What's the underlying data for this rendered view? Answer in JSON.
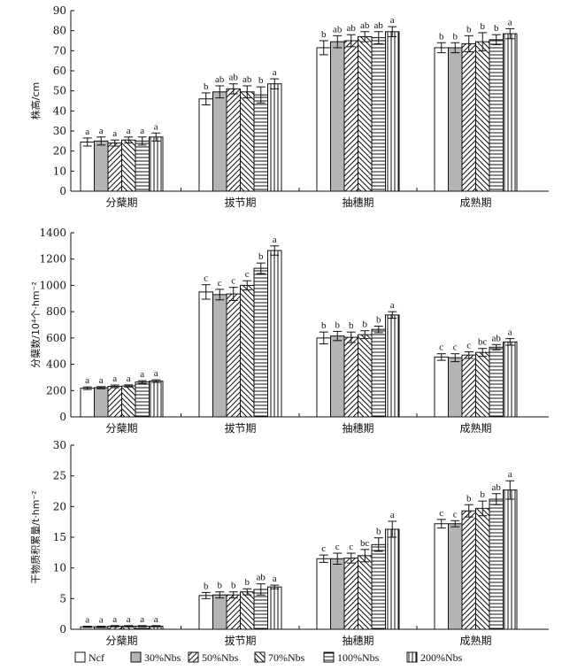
{
  "chart_data": [
    {
      "type": "bar",
      "ylabel": "株高/cm",
      "ylim": [
        0,
        90
      ],
      "yticks": [
        0,
        10,
        20,
        30,
        40,
        50,
        60,
        70,
        80,
        90
      ],
      "categories": [
        "分蘖期",
        "拔节期",
        "抽穗期",
        "成熟期"
      ],
      "series": [
        {
          "name": "Ncf",
          "values": [
            24.5,
            46.0,
            71.5,
            71.5
          ],
          "errors": [
            2.0,
            3.0,
            3.5,
            2.5
          ],
          "letters": [
            "a",
            "b",
            "b",
            "b"
          ]
        },
        {
          "name": "30%Nbs",
          "values": [
            25.0,
            49.5,
            74.5,
            71.5
          ],
          "errors": [
            2.0,
            3.0,
            3.0,
            2.5
          ],
          "letters": [
            "a",
            "ab",
            "ab",
            "b"
          ]
        },
        {
          "name": "50%Nbs",
          "values": [
            24.0,
            51.0,
            75.0,
            73.5
          ],
          "errors": [
            1.5,
            2.5,
            3.0,
            4.0
          ],
          "letters": [
            "a",
            "ab",
            "ab",
            "b"
          ]
        },
        {
          "name": "70%Nbs",
          "values": [
            25.5,
            49.5,
            77.0,
            74.5
          ],
          "errors": [
            1.5,
            3.0,
            2.5,
            4.5
          ],
          "letters": [
            "a",
            "ab",
            "ab",
            "b"
          ]
        },
        {
          "name": "100%Nbs",
          "values": [
            25.0,
            48.0,
            76.5,
            75.5
          ],
          "errors": [
            2.0,
            4.0,
            3.0,
            2.5
          ],
          "letters": [
            "a",
            "b",
            "ab",
            "b"
          ]
        },
        {
          "name": "200%Nbs",
          "values": [
            27.0,
            53.5,
            79.5,
            78.5
          ],
          "errors": [
            2.0,
            2.5,
            2.5,
            2.5
          ],
          "letters": [
            "a",
            "a",
            "a",
            "a"
          ]
        }
      ]
    },
    {
      "type": "bar",
      "ylabel": "分蘖数/10⁴个·hm⁻²",
      "ylim": [
        0,
        1400
      ],
      "yticks": [
        0,
        200,
        400,
        600,
        800,
        1000,
        1200,
        1400
      ],
      "categories": [
        "分蘖期",
        "拔节期",
        "抽穗期",
        "成熟期"
      ],
      "series": [
        {
          "name": "Ncf",
          "values": [
            218,
            950,
            600,
            455
          ],
          "errors": [
            10,
            55,
            45,
            25
          ],
          "letters": [
            "a",
            "c",
            "b",
            "c"
          ]
        },
        {
          "name": "30%Nbs",
          "values": [
            222,
            930,
            615,
            450
          ],
          "errors": [
            8,
            40,
            35,
            30
          ],
          "letters": [
            "a",
            "c",
            "b",
            "c"
          ]
        },
        {
          "name": "50%Nbs",
          "values": [
            232,
            935,
            605,
            470
          ],
          "errors": [
            10,
            50,
            40,
            25
          ],
          "letters": [
            "a",
            "c",
            "b",
            "c"
          ]
        },
        {
          "name": "70%Nbs",
          "values": [
            235,
            1000,
            625,
            490
          ],
          "errors": [
            8,
            35,
            30,
            30
          ],
          "letters": [
            "a",
            "c",
            "b",
            "bc"
          ]
        },
        {
          "name": "100%Nbs",
          "values": [
            265,
            1130,
            665,
            530
          ],
          "errors": [
            10,
            40,
            25,
            20
          ],
          "letters": [
            "a",
            "b",
            "b",
            "ab"
          ]
        },
        {
          "name": "200%Nbs",
          "values": [
            272,
            1265,
            775,
            570
          ],
          "errors": [
            10,
            35,
            25,
            25
          ],
          "letters": [
            "a",
            "a",
            "a",
            "a"
          ]
        }
      ]
    },
    {
      "type": "bar",
      "ylabel": "干物质积累量/t·hm⁻²",
      "ylim": [
        0,
        30
      ],
      "yticks": [
        0,
        5,
        10,
        15,
        20,
        25,
        30
      ],
      "categories": [
        "分蘖期",
        "拔节期",
        "抽穗期",
        "成熟期"
      ],
      "series": [
        {
          "name": "Ncf",
          "values": [
            0.4,
            5.5,
            11.5,
            17.2
          ],
          "errors": [
            0.1,
            0.5,
            0.6,
            0.7
          ],
          "letters": [
            "a",
            "b",
            "c",
            "c"
          ]
        },
        {
          "name": "30%Nbs",
          "values": [
            0.4,
            5.6,
            11.5,
            17.2
          ],
          "errors": [
            0.1,
            0.5,
            0.9,
            0.5
          ],
          "letters": [
            "a",
            "b",
            "c",
            "c"
          ]
        },
        {
          "name": "50%Nbs",
          "values": [
            0.5,
            5.6,
            11.6,
            19.3
          ],
          "errors": [
            0.1,
            0.5,
            0.8,
            1.0
          ],
          "letters": [
            "a",
            "b",
            "c",
            "b"
          ]
        },
        {
          "name": "70%Nbs",
          "values": [
            0.5,
            6.1,
            12.0,
            19.7
          ],
          "errors": [
            0.1,
            0.5,
            1.0,
            1.2
          ],
          "letters": [
            "a",
            "b",
            "bc",
            "b"
          ]
        },
        {
          "name": "100%Nbs",
          "values": [
            0.5,
            6.5,
            13.8,
            21.2
          ],
          "errors": [
            0.1,
            0.9,
            1.1,
            0.9
          ],
          "letters": [
            "a",
            "ab",
            "b",
            "ab"
          ]
        },
        {
          "name": "200%Nbs",
          "values": [
            0.5,
            6.9,
            16.3,
            22.7
          ],
          "errors": [
            0.1,
            0.3,
            1.3,
            1.5
          ],
          "letters": [
            "a",
            "a",
            "a",
            "a"
          ]
        }
      ]
    }
  ],
  "legend": {
    "placement": "bottom",
    "items": [
      {
        "label": "Ncf",
        "pattern": "white"
      },
      {
        "label": "30%Nbs",
        "pattern": "gray"
      },
      {
        "label": "50%Nbs",
        "pattern": "diagonal-forward"
      },
      {
        "label": "70%Nbs",
        "pattern": "diagonal-back"
      },
      {
        "label": "100%Nbs",
        "pattern": "horizontal"
      },
      {
        "label": "200%Nbs",
        "pattern": "vertical"
      }
    ]
  },
  "colors": {
    "gray_fill": "#b4b4b4",
    "stroke": "#111111"
  }
}
